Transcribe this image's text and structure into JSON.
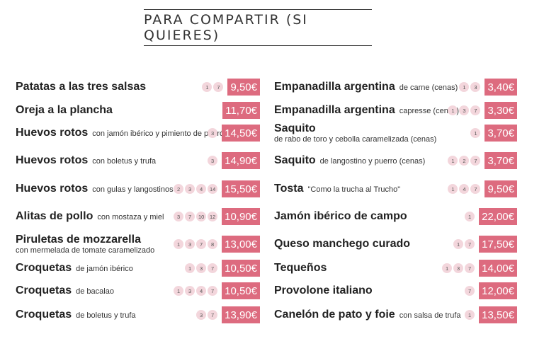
{
  "title": "PARA COMPARTIR (SI QUIERES)",
  "left": [
    {
      "name": "Patatas a las tres salsas",
      "desc": "",
      "sub": "",
      "allergens": [
        "1",
        "7"
      ],
      "price": "9,50€"
    },
    {
      "name": "Oreja a la plancha",
      "desc": "",
      "sub": "",
      "allergens": [],
      "price": "11,70€"
    },
    {
      "name": "Huevos rotos",
      "desc": "con jamón ibérico y pimiento de padrón",
      "sub": "",
      "allergens": [
        "3"
      ],
      "price": "14,50€"
    },
    {
      "name": "Huevos rotos",
      "desc": "con boletus y trufa",
      "sub": "",
      "allergens": [
        "3"
      ],
      "price": "14,90€"
    },
    {
      "name": "Huevos rotos",
      "desc": "con gulas y langostinos",
      "sub": "",
      "allergens": [
        "2",
        "3",
        "4",
        "14"
      ],
      "price": "15,50€"
    },
    {
      "name": "Alitas de pollo",
      "desc": "con mostaza y miel",
      "sub": "",
      "allergens": [
        "3",
        "7",
        "10",
        "12"
      ],
      "price": "10,90€"
    },
    {
      "name": "Piruletas de mozzarella",
      "desc": "",
      "sub": "con mermelada de tomate caramelizado",
      "allergens": [
        "1",
        "3",
        "7",
        "8"
      ],
      "price": "13,00€"
    },
    {
      "name": "Croquetas",
      "desc": "de jamón ibérico",
      "sub": "",
      "allergens": [
        "1",
        "3",
        "7"
      ],
      "price": "10,50€"
    },
    {
      "name": "Croquetas",
      "desc": "de bacalao",
      "sub": "",
      "allergens": [
        "1",
        "3",
        "4",
        "7"
      ],
      "price": "10,50€"
    },
    {
      "name": "Croquetas",
      "desc": "de boletus y trufa",
      "sub": "",
      "allergens": [
        "3",
        "7"
      ],
      "price": "13,90€"
    }
  ],
  "right": [
    {
      "name": "Empanadilla argentina",
      "desc": "de carne (cenas)",
      "sub": "",
      "allergens": [
        "1",
        "3"
      ],
      "price": "3,40€"
    },
    {
      "name": "Empanadilla argentina",
      "desc": "capresse (cenas)",
      "sub": "",
      "allergens": [
        "1",
        "3",
        "7"
      ],
      "price": "3,30€"
    },
    {
      "name": "Saquito",
      "desc": "",
      "sub": "de rabo de toro y cebolla caramelizada (cenas)",
      "allergens": [
        "1"
      ],
      "price": "3,70€"
    },
    {
      "name": "Saquito",
      "desc": "de langostino y puerro (cenas)",
      "sub": "",
      "allergens": [
        "1",
        "2",
        "7"
      ],
      "price": "3,70€"
    },
    {
      "name": "Tosta",
      "desc": "\"Como la trucha al Trucho\"",
      "sub": "",
      "allergens": [
        "1",
        "4",
        "7"
      ],
      "price": "9,50€"
    },
    {
      "name": "Jamón ibérico de campo",
      "desc": "",
      "sub": "",
      "allergens": [
        "1"
      ],
      "price": "22,00€"
    },
    {
      "name": "Queso manchego curado",
      "desc": "",
      "sub": "",
      "allergens": [
        "1",
        "7"
      ],
      "price": "17,50€"
    },
    {
      "name": "Tequeños",
      "desc": "",
      "sub": "",
      "allergens": [
        "1",
        "3",
        "7"
      ],
      "price": "14,00€"
    },
    {
      "name": "Provolone italiano",
      "desc": "",
      "sub": "",
      "allergens": [
        "7"
      ],
      "price": "12,00€"
    },
    {
      "name": "Canelón de pato y foie",
      "desc": "con salsa de trufa",
      "sub": "",
      "allergens": [
        "1"
      ],
      "price": "13,50€"
    }
  ]
}
